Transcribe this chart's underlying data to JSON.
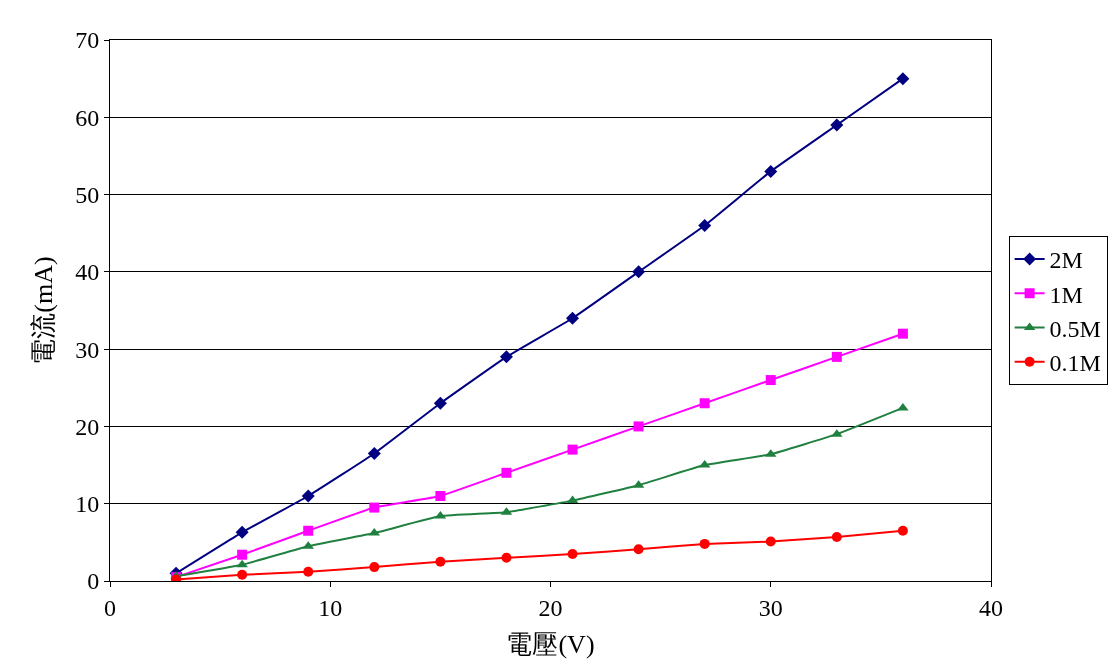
{
  "chart_data": {
    "type": "line",
    "xlabel": "電壓(V)",
    "ylabel": "電流(mA)",
    "x": [
      3,
      6,
      9,
      12,
      15,
      18,
      21,
      24,
      27,
      30,
      33,
      36
    ],
    "xlim": [
      0,
      40
    ],
    "xticks": [
      0,
      10,
      20,
      30,
      40
    ],
    "ylim": [
      0,
      70
    ],
    "yticks": [
      0,
      10,
      20,
      30,
      40,
      50,
      60,
      70
    ],
    "grid": "y",
    "legend": "right",
    "line_style": "solid",
    "series": [
      {
        "name": "2M",
        "color": "#000080",
        "marker": "diamond",
        "values": [
          1,
          6.3,
          11,
          16.5,
          23,
          29,
          34,
          40,
          46,
          53,
          59,
          65
        ]
      },
      {
        "name": "1M",
        "color": "#ff00ff",
        "marker": "square",
        "values": [
          0.5,
          3.4,
          6.5,
          9.5,
          11,
          14,
          17,
          20,
          23,
          26,
          29,
          32
        ]
      },
      {
        "name": "0.5M",
        "color": "#208040",
        "marker": "triangle",
        "values": [
          0.6,
          2.1,
          4.5,
          6.2,
          8.4,
          8.9,
          10.4,
          12.4,
          15,
          16.4,
          19,
          22.4
        ]
      },
      {
        "name": "0.1M",
        "color": "#ff0000",
        "marker": "circle",
        "values": [
          0.2,
          0.8,
          1.2,
          1.8,
          2.5,
          3,
          3.5,
          4.1,
          4.8,
          5.1,
          5.7,
          6.5
        ]
      }
    ]
  }
}
